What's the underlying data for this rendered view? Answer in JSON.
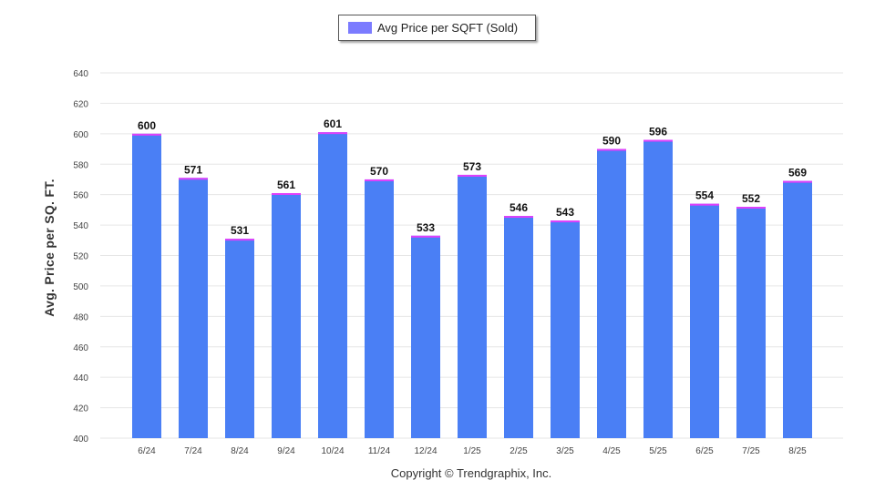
{
  "chart_data": {
    "type": "bar",
    "legend": {
      "label": "Avg Price per SQFT (Sold)",
      "position": "top-center"
    },
    "ylabel": "Avg. Price per SQ. FT.",
    "ylim": [
      400,
      640
    ],
    "yticks": [
      400,
      420,
      440,
      460,
      480,
      500,
      520,
      540,
      560,
      580,
      600,
      620,
      640
    ],
    "grid": true,
    "categories": [
      "6/24",
      "7/24",
      "8/24",
      "9/24",
      "10/24",
      "11/24",
      "12/24",
      "1/25",
      "2/25",
      "3/25",
      "4/25",
      "5/25",
      "6/25",
      "7/25",
      "8/25"
    ],
    "series": [
      {
        "name": "Avg Price per SQFT (Sold)",
        "values": [
          600,
          571,
          531,
          561,
          601,
          570,
          533,
          573,
          546,
          543,
          590,
          596,
          554,
          552,
          569
        ]
      }
    ],
    "colors": {
      "bar": "#4a7ff5",
      "bar_top": "#e040fb",
      "legend_swatch": "#7b7bff"
    }
  },
  "footer": {
    "copyright": "Copyright © Trendgraphix, Inc."
  }
}
